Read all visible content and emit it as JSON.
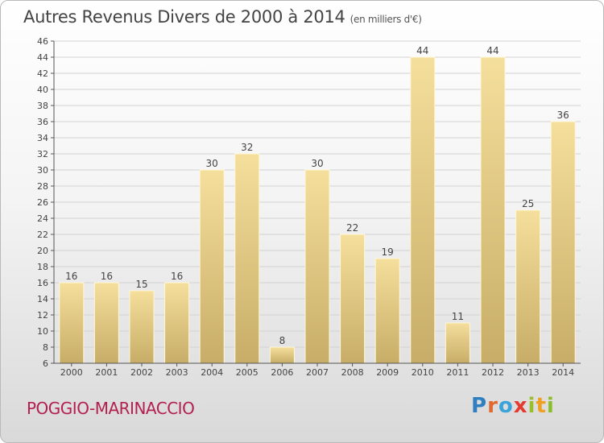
{
  "header": {
    "title": "Autres Revenus Divers de 2000 à 2014",
    "unit": "(en milliers d'€)"
  },
  "footer": {
    "commune": "POGGIO-MARINACCIO",
    "logo": "Proxiti"
  },
  "colors": {
    "bar_light": "#f5df9c",
    "bar_dark": "#c7ad67",
    "commune": "#b3204f"
  },
  "chart_data": {
    "type": "bar",
    "title": "Autres Revenus Divers de 2000 à 2014",
    "subtitle": "(en milliers d'€)",
    "xlabel": "",
    "ylabel": "",
    "categories": [
      "2000",
      "2001",
      "2002",
      "2003",
      "2004",
      "2005",
      "2006",
      "2007",
      "2008",
      "2009",
      "2010",
      "2011",
      "2012",
      "2013",
      "2014"
    ],
    "values": [
      16,
      16,
      15,
      16,
      30,
      32,
      8,
      30,
      22,
      19,
      44,
      11,
      44,
      25,
      36
    ],
    "ylim": [
      6,
      46
    ],
    "yticks": [
      6,
      8,
      10,
      12,
      14,
      16,
      18,
      20,
      22,
      24,
      26,
      28,
      30,
      32,
      34,
      36,
      38,
      40,
      42,
      44,
      46
    ],
    "grid": true,
    "legend": "none"
  }
}
